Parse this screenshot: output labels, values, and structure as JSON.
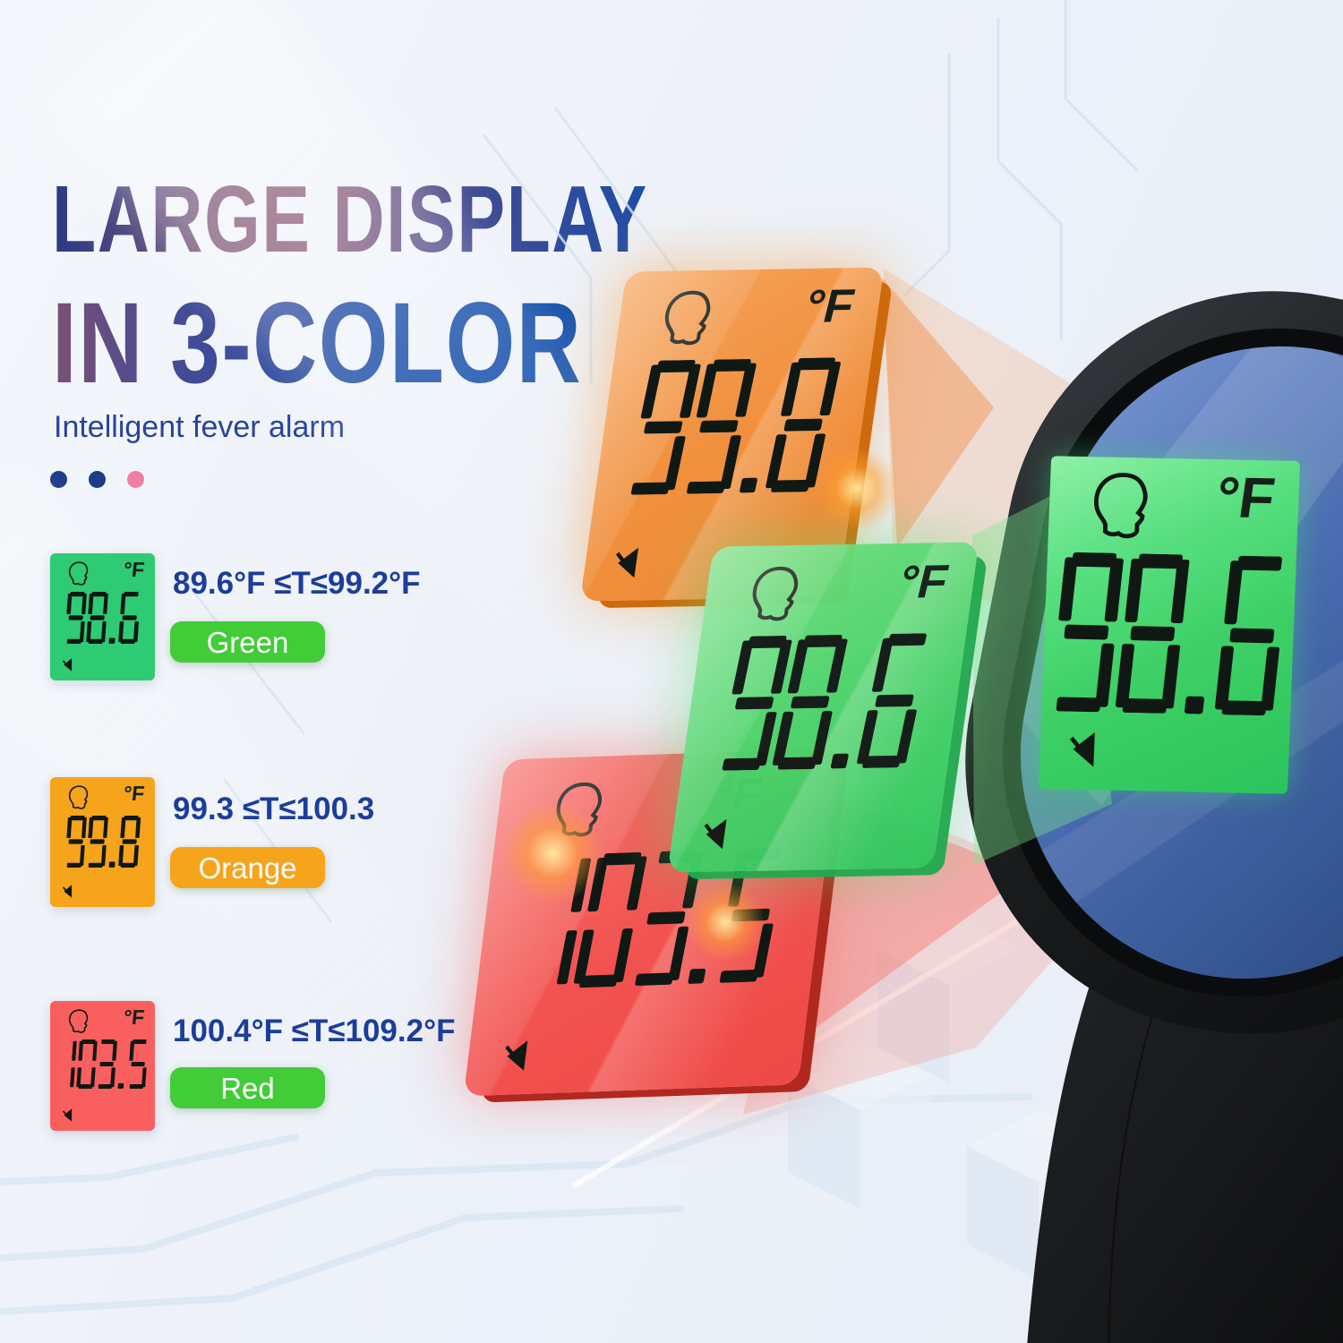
{
  "page": {
    "background": "#eef2f8"
  },
  "header": {
    "title_line1": "LARGE DISPLAY",
    "title_line2": "IN 3-COLOR",
    "subtitle": "Intelligent fever alarm",
    "dot_colors": [
      "#1d3a8c",
      "#1d3a8c",
      "#ef7fa4"
    ]
  },
  "legend": {
    "rows": [
      {
        "name": "green",
        "lcd_value": "98.6",
        "unit": "°F",
        "range": "89.6°F ≤T≤99.2°F",
        "button_label": "Green",
        "swatch_color": "#2fca74",
        "button_color": "#41cc38"
      },
      {
        "name": "orange",
        "lcd_value": "99.8",
        "unit": "°F",
        "range": "99.3 ≤T≤100.3",
        "button_label": "Orange",
        "swatch_color": "#f6a41c",
        "button_color": "#f6a41c"
      },
      {
        "name": "red",
        "lcd_value": "103.5",
        "unit": "°F",
        "range": "100.4°F ≤T≤109.2°F",
        "button_label": "Red",
        "swatch_color": "#fa5f5f",
        "button_color": "#41cc38"
      }
    ]
  },
  "panels": {
    "orange": {
      "lcd_value": "99.8",
      "unit": "°F",
      "color": "#f08f3c"
    },
    "green": {
      "lcd_value": "98.6",
      "unit": "°F",
      "color": "#4cd36a"
    },
    "red": {
      "lcd_value": "103.5",
      "unit": "°F",
      "color": "#f2524f"
    }
  },
  "device": {
    "lcd_value": "98.6",
    "unit": "°F",
    "screen_color": "#4a6cb0",
    "lcd_color": "#3ed066",
    "body_color": "#1a1c1e"
  }
}
